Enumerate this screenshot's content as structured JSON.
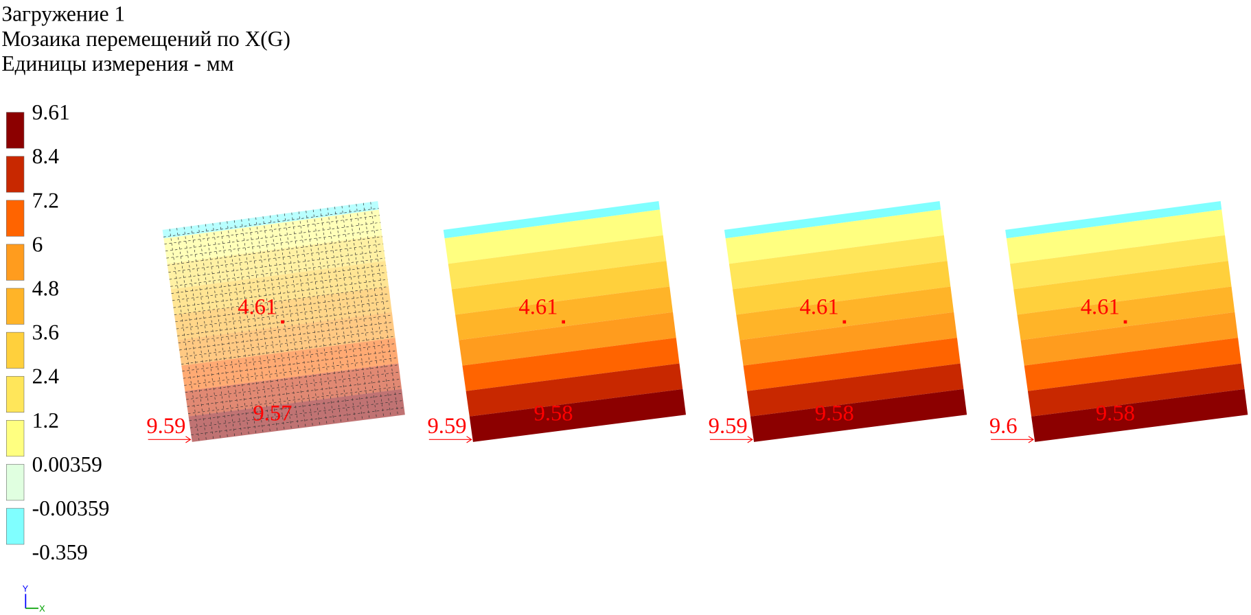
{
  "header": {
    "lines": [
      "Загружение 1",
      "Мозаика перемещений по X(G)",
      "Единицы измерения - мм"
    ]
  },
  "legend": {
    "labels": [
      "9.61",
      "8.4",
      "7.2",
      "6",
      "4.8",
      "3.6",
      "2.4",
      "1.2",
      "0.00359",
      "-0.00359",
      "-0.359"
    ],
    "colors": [
      "#8c0000",
      "#c82800",
      "#ff6400",
      "#ff9c1e",
      "#ffb428",
      "#ffd03c",
      "#ffe65a",
      "#ffff80",
      "#e0ffe0",
      "#80ffff"
    ]
  },
  "panels": [
    {
      "center": "4.61",
      "left": "9.59",
      "bottom": "9.57"
    },
    {
      "center": "4.61",
      "left": "9.59",
      "bottom": "9.58"
    },
    {
      "center": "4.61",
      "left": "9.59",
      "bottom": "9.58"
    },
    {
      "center": "4.61",
      "left": "9.6",
      "bottom": "9.58"
    }
  ],
  "axes": {
    "y": "Y",
    "x": "X"
  }
}
